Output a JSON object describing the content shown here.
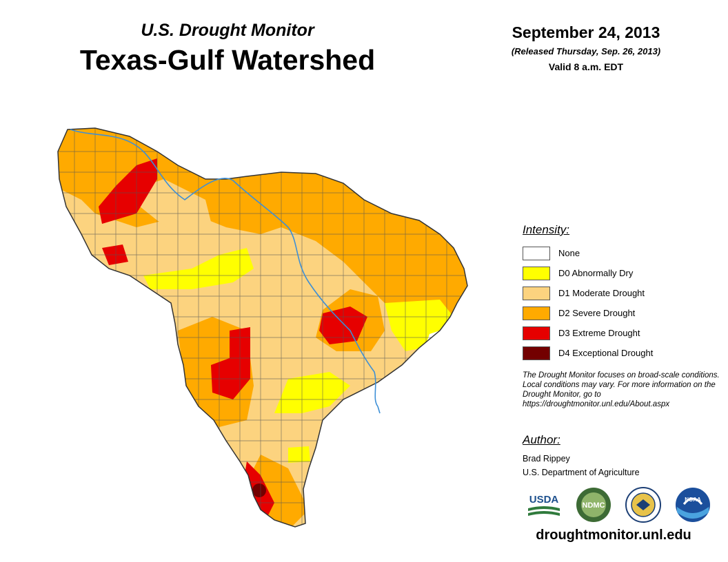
{
  "header": {
    "subtitle": "U.S. Drought Monitor",
    "title": "Texas-Gulf Watershed",
    "date": "September 24, 2013",
    "released": "(Released Thursday, Sep. 26, 2013)",
    "valid": "Valid 8 a.m. EDT"
  },
  "legend": {
    "title": "Intensity:",
    "items": [
      {
        "label": "None",
        "color": "#ffffff"
      },
      {
        "label": "D0 Abnormally Dry",
        "color": "#ffff00"
      },
      {
        "label": "D1 Moderate Drought",
        "color": "#fcd37f"
      },
      {
        "label": "D2 Severe Drought",
        "color": "#ffaa00"
      },
      {
        "label": "D3 Extreme Drought",
        "color": "#e60000"
      },
      {
        "label": "D4 Exceptional Drought",
        "color": "#730000"
      }
    ]
  },
  "note": "The Drought Monitor focuses on broad-scale conditions. Local conditions may vary. For more information on the Drought Monitor, go to https://droughtmonitor.unl.edu/About.aspx",
  "author": {
    "title": "Author:",
    "name": "Brad Rippey",
    "org": "U.S. Department of Agriculture"
  },
  "logos": {
    "usda": "USDA",
    "ndmc": "NDMC",
    "noaa": "NOAA"
  },
  "colors": {
    "river": "#3d8fd6",
    "county_line": "#555555"
  },
  "url": "droughtmonitor.unl.edu"
}
